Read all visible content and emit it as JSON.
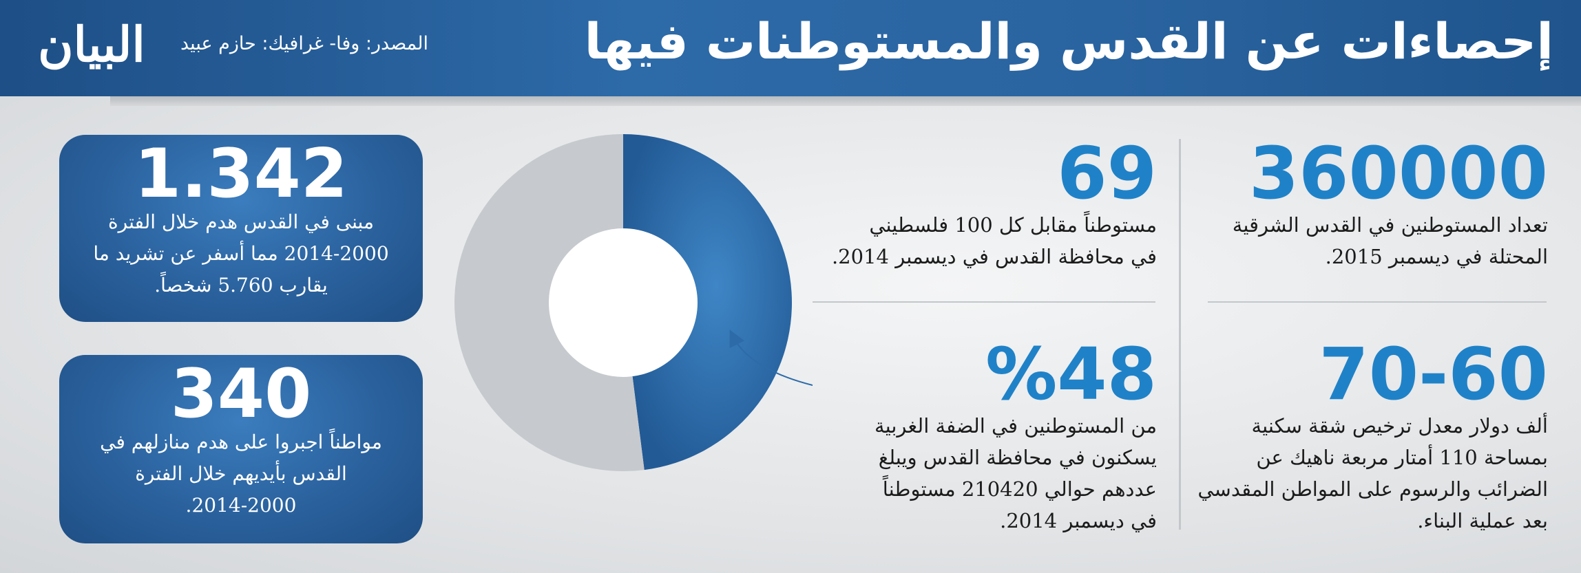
{
  "header": {
    "title": "إحصاءات عن القدس والمستوطنات فيها",
    "source": "المصدر: وفا- غرافيك: حازم عبيد",
    "logo_text": "البيان"
  },
  "stats": {
    "settlers_east_jerusalem": {
      "number": "360000",
      "text": "تعداد المستوطنين في القدس الشرقية\nالمحتلة في ديسمبر 2015."
    },
    "settlers_per_palestinians": {
      "number": "69",
      "text": "مستوطناً مقابل كل 100 فلسطيني\nفي محافظة القدس في ديسمبر 2014."
    },
    "license_cost": {
      "number": "70-60",
      "text": "ألف دولار معدل ترخيص شقة سكنية\nبمساحة 110 أمتار مربعة ناهيك عن\nالضرائب والرسوم على المواطن المقدسي\nبعد عملية البناء."
    },
    "west_bank_share": {
      "number": "%48",
      "text": "من المستوطنين في الضفة الغربية\nيسكنون في محافظة القدس ويبلغ\nعددهم حوالي 210420 مستوطناً\nفي ديسمبر 2014."
    }
  },
  "boxes": {
    "demolished_buildings": {
      "number": "1.342",
      "text": "مبنى في القدس هدم خلال الفترة\n2014-2000 مما أسفر عن تشريد ما\nيقارب 5.760 شخصاً."
    },
    "self_demolition": {
      "number": "340",
      "text": "مواطناً اجبروا على هدم منازلهم في\nالقدس بأيديهم خلال الفترة\n2014-2000."
    }
  },
  "chart_data": {
    "type": "pie",
    "donut": true,
    "values": [
      48,
      52
    ],
    "colors": [
      "#2d6aa8",
      "#c6c9cd"
    ]
  },
  "colors": {
    "accent": "#1f82c8",
    "header": "#2a64a0",
    "box": "#2a619d"
  }
}
